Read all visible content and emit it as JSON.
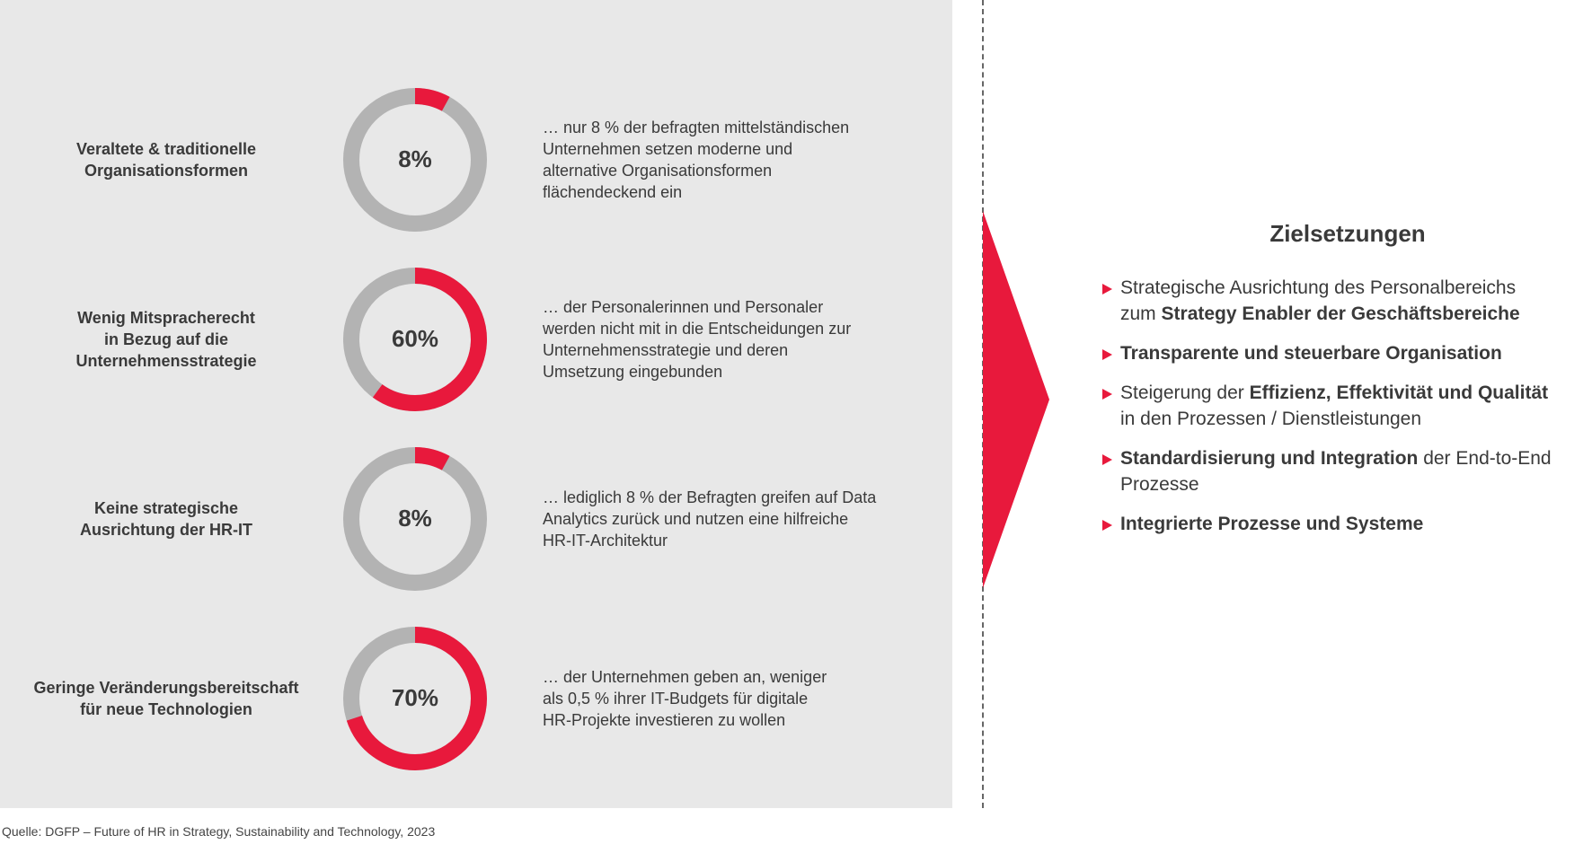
{
  "colors": {
    "accent": "#e8193c",
    "track": "#b3b3b3",
    "panel": "#e8e8e8",
    "text": "#3a3a3a"
  },
  "chart_data": {
    "type": "pie",
    "rows": [
      {
        "label": [
          "Veraltete & traditionelle",
          "Organisationsformen"
        ],
        "value": 8,
        "value_label": "8%",
        "description": [
          "… nur 8 % der befragten mittelständischen",
          "Unternehmen setzen moderne und",
          "alternative Organisationsformen",
          "flächendeckend ein"
        ]
      },
      {
        "label": [
          "Wenig Mitspracherecht",
          "in Bezug auf die",
          "Unternehmensstrategie"
        ],
        "value": 60,
        "value_label": "60%",
        "description": [
          "… der Personalerinnen und Personaler",
          "werden nicht mit in die Entscheidungen zur",
          "Unternehmensstrategie und deren",
          "Umsetzung eingebunden"
        ]
      },
      {
        "label": [
          "Keine strategische",
          "Ausrichtung der HR-IT"
        ],
        "value": 8,
        "value_label": "8%",
        "description": [
          "… lediglich 8 % der Befragten greifen auf Data",
          "Analytics zurück und nutzen eine hilfreiche",
          "HR-IT-Architektur"
        ]
      },
      {
        "label": [
          "Geringe Veränderungsbereitschaft",
          "für neue Technologien"
        ],
        "value": 70,
        "value_label": "70%",
        "description": [
          "… der Unternehmen geben an, weniger",
          "als 0,5 % ihrer IT-Budgets für digitale",
          "HR-Projekte investieren zu wollen"
        ]
      }
    ]
  },
  "goals": {
    "title": "Zielsetzungen",
    "items": [
      {
        "parts": [
          {
            "text": "Strategische Ausrichtung des Personalbereichs",
            "bold": false
          },
          {
            "text": "\nzum ",
            "bold": false
          },
          {
            "text": "Strategy Enabler der Geschäftsbereiche",
            "bold": true
          }
        ]
      },
      {
        "parts": [
          {
            "text": "Transparente und steuerbare Organisation",
            "bold": true
          }
        ]
      },
      {
        "parts": [
          {
            "text": "Steigerung der ",
            "bold": false
          },
          {
            "text": "Effizienz, Effektivität und Qualität",
            "bold": true
          },
          {
            "text": "\nin den Prozessen / Dienstleistungen",
            "bold": false
          }
        ]
      },
      {
        "parts": [
          {
            "text": "Standardisierung und Integration",
            "bold": true
          },
          {
            "text": " der End-to-End\nProzesse",
            "bold": false
          }
        ]
      },
      {
        "parts": [
          {
            "text": "Integrierte Prozesse und Systeme",
            "bold": true
          }
        ]
      }
    ]
  },
  "source": "Quelle: DGFP – Future of HR in Strategy, Sustainability and Technology, 2023"
}
